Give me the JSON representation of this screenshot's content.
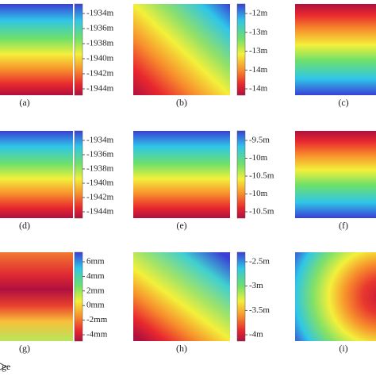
{
  "panels": [
    {
      "label": "(a)",
      "colorbar_ticks": [
        "-1934m",
        "-1936m",
        "-1938m",
        "-1940m",
        "-1942m",
        "-1944m"
      ]
    },
    {
      "label": "(b)",
      "colorbar_ticks": [
        "-12m",
        "-13m",
        "-13m",
        "-14m",
        "-14m"
      ]
    },
    {
      "label": "(c)"
    },
    {
      "label": "(d)",
      "colorbar_ticks": [
        "-1934m",
        "-1936m",
        "-1938m",
        "-1940m",
        "-1942m",
        "-1944m"
      ]
    },
    {
      "label": "(e)",
      "colorbar_ticks": [
        "-9.5m",
        "-10m",
        "-10.5m",
        "-10m",
        "-10.5m"
      ]
    },
    {
      "label": "(f)"
    },
    {
      "label": "(g)",
      "colorbar_ticks": [
        "6mm",
        "4mm",
        "2mm",
        "0mm",
        "-2mm",
        "-4mm"
      ]
    },
    {
      "label": "(h)",
      "colorbar_ticks": [
        "-2.5m",
        "-3m",
        "-3.5m",
        "-4m"
      ]
    },
    {
      "label": "(i)"
    }
  ],
  "caption_fragment": "ge"
}
